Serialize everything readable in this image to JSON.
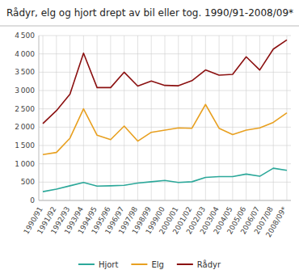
{
  "chart_data": {
    "type": "line",
    "title": "Rådyr, elg og hjort drept av bil eller tog. 1990/91-2008/09*",
    "categories": [
      "1990/91",
      "1991/92",
      "1992/93",
      "1993/94",
      "1994/95",
      "1995/96",
      "1996/97",
      "1997/98",
      "1998/99",
      "1999/00",
      "2000/01",
      "2001/02",
      "2002/03",
      "2003/04",
      "2004/05",
      "2005/06",
      "2006/07",
      "2007/08",
      "2008/09*"
    ],
    "series": [
      {
        "name": "Hjort",
        "color": "#2ca89a",
        "values": [
          240,
          310,
          400,
          490,
          390,
          400,
          415,
          475,
          510,
          545,
          490,
          510,
          630,
          650,
          650,
          720,
          660,
          880,
          820
        ]
      },
      {
        "name": "Elg",
        "color": "#e8a020",
        "values": [
          1250,
          1310,
          1700,
          2500,
          1780,
          1660,
          2030,
          1620,
          1860,
          1920,
          1980,
          1970,
          2620,
          1970,
          1800,
          1920,
          1980,
          2130,
          2390
        ]
      },
      {
        "name": "Rådyr",
        "color": "#8B1010",
        "values": [
          2100,
          2450,
          2900,
          4020,
          3080,
          3080,
          3500,
          3120,
          3260,
          3140,
          3130,
          3270,
          3560,
          3420,
          3440,
          3920,
          3560,
          4130,
          4380
        ]
      }
    ],
    "ylim": [
      0,
      4500
    ],
    "yticks": [
      0,
      500,
      {
        "value": 1000,
        "label": "1 000"
      },
      {
        "value": 1500,
        "label": "1 500"
      },
      {
        "value": 2000,
        "label": "2 000"
      },
      {
        "value": 2500,
        "label": "2 500"
      },
      {
        "value": 3000,
        "label": "3 000"
      },
      {
        "value": 3500,
        "label": "3 500"
      },
      {
        "value": 4000,
        "label": "4 000"
      },
      {
        "value": 4500,
        "label": "4 500"
      }
    ],
    "grid": true,
    "legend": "bottom"
  }
}
